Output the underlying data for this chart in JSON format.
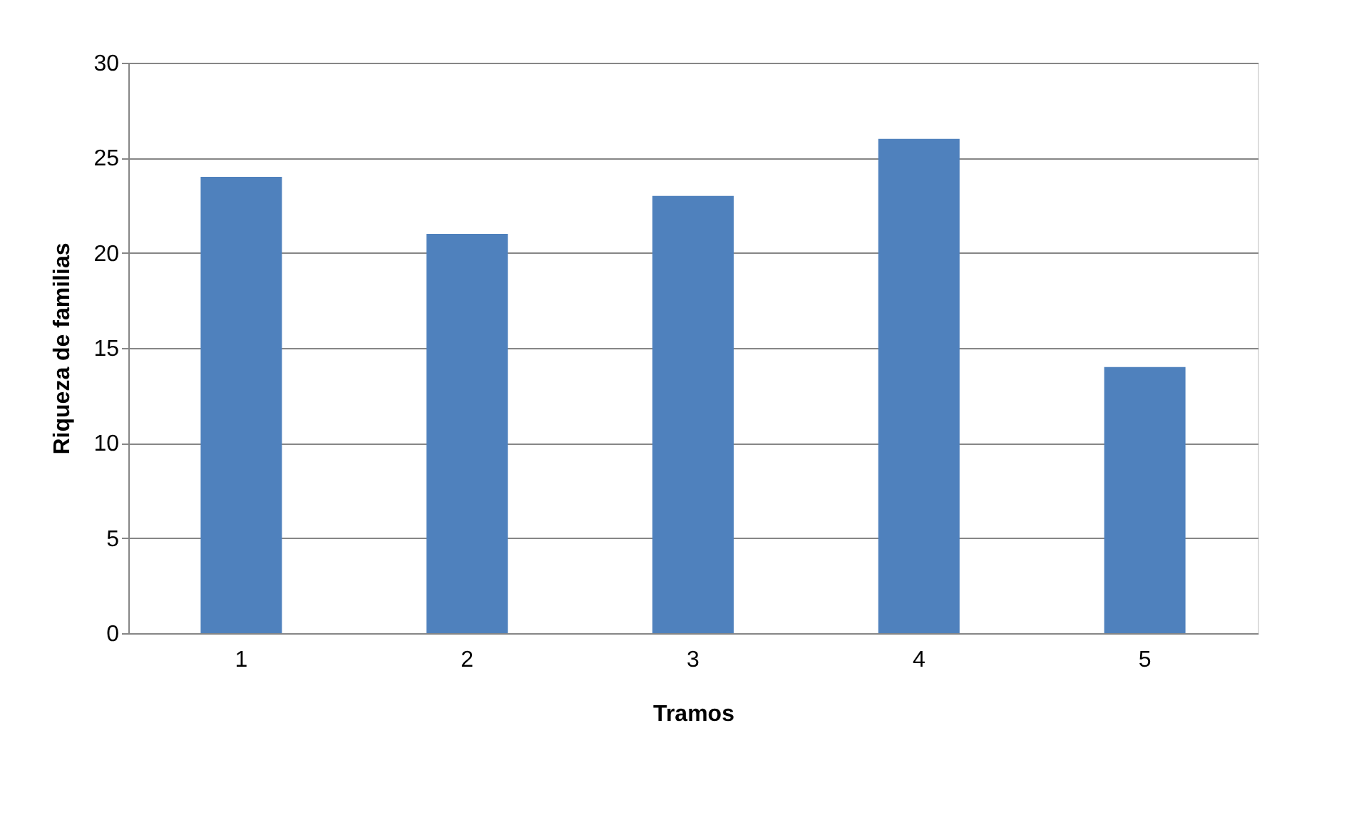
{
  "chart_data": {
    "type": "bar",
    "xlabel": "Tramos",
    "ylabel": "Riqueza de familias",
    "categories": [
      "1",
      "2",
      "3",
      "4",
      "5"
    ],
    "values": [
      24,
      21,
      23,
      26,
      14
    ],
    "color": "#4f81bd",
    "ylim": [
      0,
      30
    ],
    "yticks": [
      0,
      5,
      10,
      15,
      20,
      25,
      30
    ],
    "grid": "y"
  }
}
